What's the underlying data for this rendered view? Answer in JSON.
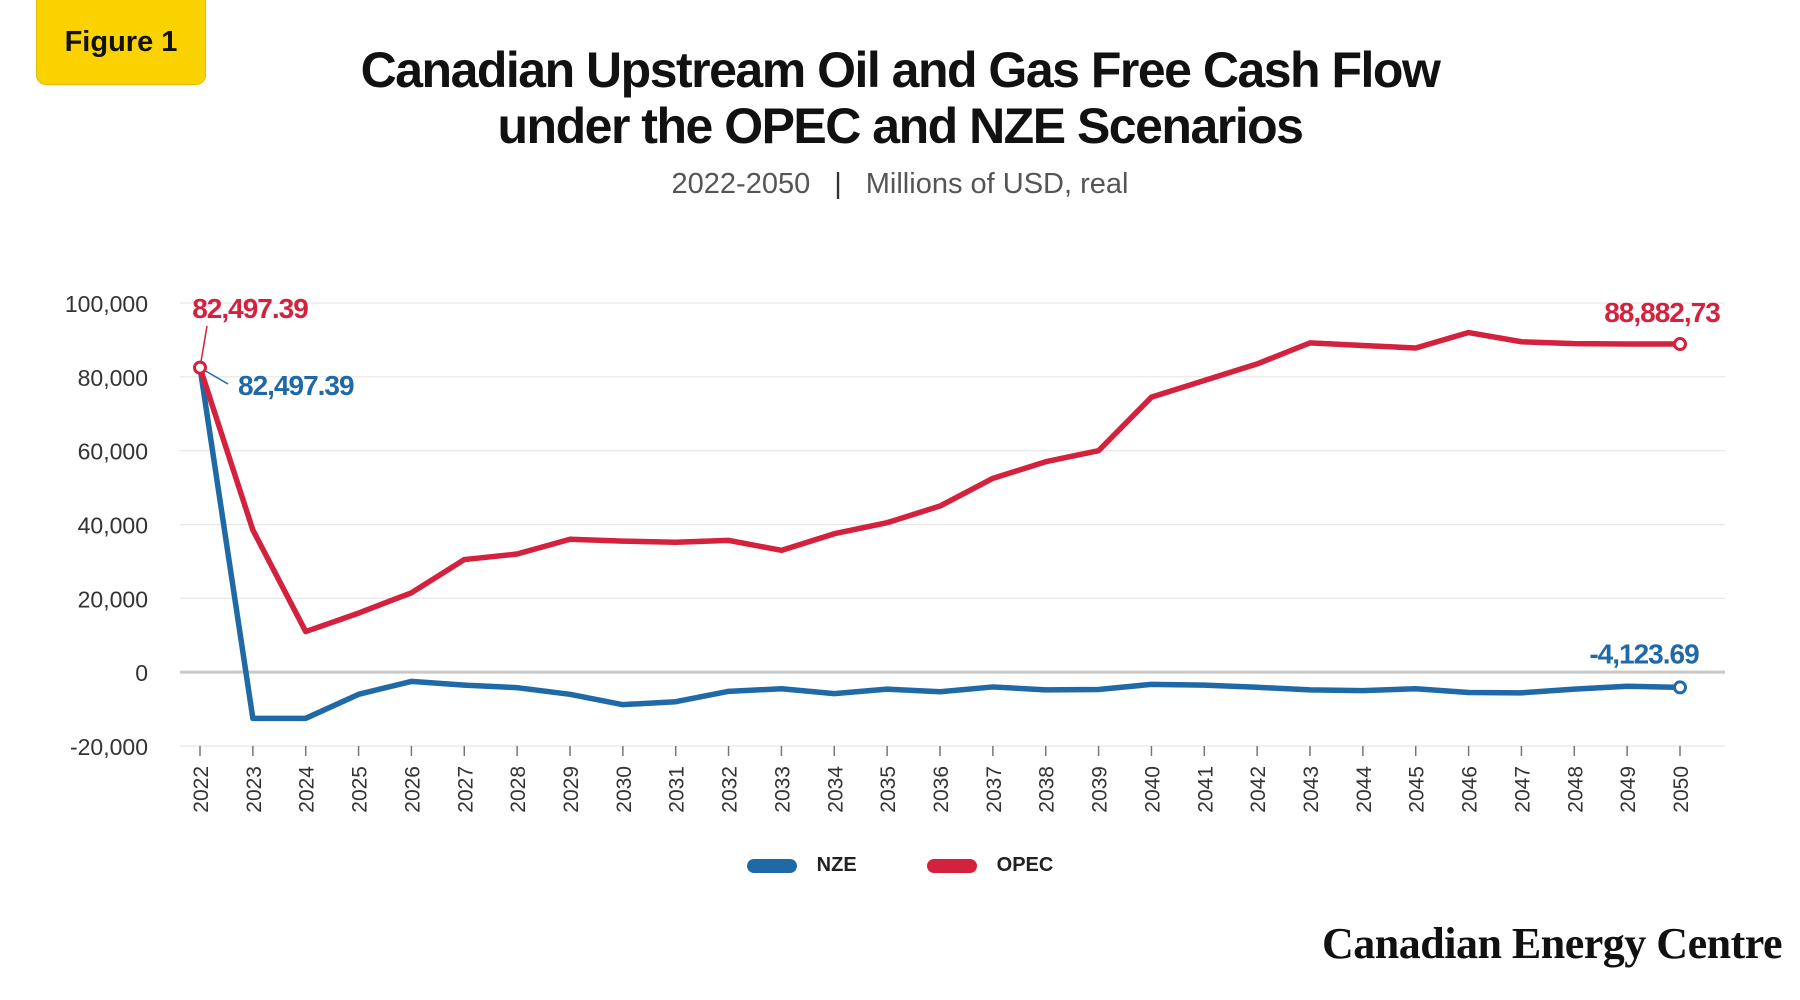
{
  "badge": "Figure 1",
  "brand": "Canadian Energy Centre",
  "chart_data": {
    "type": "line",
    "title": "Canadian Upstream Oil and Gas Free Cash Flow\nunder the OPEC and NZE Scenarios",
    "title_lines": [
      "Canadian Upstream Oil and Gas Free Cash Flow",
      "under the OPEC and NZE Scenarios"
    ],
    "subtitle_period": "2022-2050",
    "subtitle_unit": "Millions of USD, real",
    "xlabel": "",
    "ylabel": "",
    "ylim": [
      -20000,
      100000
    ],
    "yticks": [
      100000,
      80000,
      60000,
      40000,
      20000,
      0,
      -20000
    ],
    "ytick_labels": [
      "100,000",
      "80,000",
      "60,000",
      "40,000",
      "20,000",
      "0",
      "-20,000"
    ],
    "grid": true,
    "legend_position": "bottom",
    "x": [
      "2022",
      "2023",
      "2024",
      "2025",
      "2026",
      "2027",
      "2028",
      "2029",
      "2030",
      "2031",
      "2032",
      "2033",
      "2034",
      "2035",
      "2036",
      "2037",
      "2038",
      "2039",
      "2040",
      "2041",
      "2042",
      "2043",
      "2044",
      "2045",
      "2046",
      "2047",
      "2048",
      "2049",
      "2050"
    ],
    "series": [
      {
        "name": "NZE",
        "color": "#1f6aa6",
        "values": [
          82497.39,
          -12500,
          -12500,
          -6000,
          -2500,
          -3500,
          -4200,
          -6000,
          -8800,
          -8000,
          -5200,
          -4500,
          -5800,
          -4600,
          -5300,
          -4000,
          -4800,
          -4700,
          -3300,
          -3500,
          -4100,
          -4800,
          -5000,
          -4500,
          -5500,
          -5600,
          -4600,
          -3800,
          -4123.69
        ]
      },
      {
        "name": "OPEC",
        "color": "#d4213d",
        "values": [
          82497.39,
          38500,
          11000,
          16000,
          21500,
          30500,
          32000,
          36000,
          35500,
          35200,
          35700,
          33000,
          37500,
          40500,
          45000,
          52500,
          57000,
          60000,
          74500,
          79000,
          83500,
          89200,
          88500,
          87800,
          92000,
          89500,
          89000,
          88900,
          88882.73
        ]
      }
    ],
    "annotations": [
      {
        "series": "OPEC",
        "x": "2022",
        "text": "82,497.39"
      },
      {
        "series": "NZE",
        "x": "2022",
        "text": "82,497.39"
      },
      {
        "series": "OPEC",
        "x": "2050",
        "text": "88,882,73"
      },
      {
        "series": "NZE",
        "x": "2050",
        "text": "-4,123.69"
      }
    ]
  }
}
